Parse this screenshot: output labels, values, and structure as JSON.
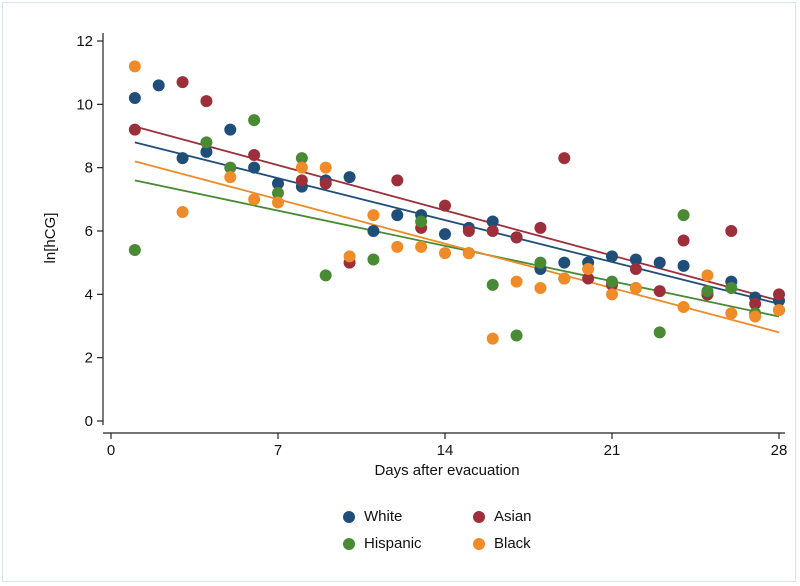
{
  "chart_data": {
    "type": "scatter",
    "xlabel": "Days after evacuation",
    "ylabel": "ln[hCG]",
    "xlim": [
      0,
      28
    ],
    "ylim": [
      0,
      12
    ],
    "xticks": [
      "0",
      "7",
      "14",
      "21",
      "28"
    ],
    "yticks": [
      "0",
      "2",
      "4",
      "6",
      "8",
      "10",
      "12"
    ],
    "legend_position": "bottom",
    "series": [
      {
        "name": "White",
        "color": "#1f4e79",
        "points": [
          [
            1,
            10.2
          ],
          [
            2,
            10.6
          ],
          [
            3,
            8.3
          ],
          [
            4,
            8.5
          ],
          [
            5,
            9.2
          ],
          [
            6,
            8.0
          ],
          [
            7,
            7.5
          ],
          [
            8,
            7.4
          ],
          [
            9,
            7.6
          ],
          [
            10,
            7.7
          ],
          [
            11,
            6.0
          ],
          [
            12,
            6.5
          ],
          [
            13,
            6.5
          ],
          [
            14,
            5.9
          ],
          [
            15,
            6.1
          ],
          [
            16,
            6.3
          ],
          [
            17,
            5.8
          ],
          [
            18,
            4.8
          ],
          [
            19,
            5.0
          ],
          [
            20,
            5.0
          ],
          [
            21,
            5.2
          ],
          [
            22,
            5.1
          ],
          [
            23,
            5.0
          ],
          [
            24,
            4.9
          ],
          [
            25,
            4.0
          ],
          [
            26,
            4.4
          ],
          [
            27,
            3.9
          ],
          [
            28,
            3.8
          ]
        ],
        "fit": [
          8.8,
          3.7
        ]
      },
      {
        "name": "Asian",
        "color": "#9c2f3a",
        "points": [
          [
            1,
            9.2
          ],
          [
            3,
            10.7
          ],
          [
            4,
            10.1
          ],
          [
            6,
            8.4
          ],
          [
            8,
            7.6
          ],
          [
            9,
            7.5
          ],
          [
            10,
            5.0
          ],
          [
            12,
            7.6
          ],
          [
            13,
            6.1
          ],
          [
            14,
            6.8
          ],
          [
            15,
            6.0
          ],
          [
            16,
            6.0
          ],
          [
            17,
            5.8
          ],
          [
            18,
            6.1
          ],
          [
            19,
            8.3
          ],
          [
            20,
            4.5
          ],
          [
            21,
            4.3
          ],
          [
            22,
            4.8
          ],
          [
            23,
            4.1
          ],
          [
            24,
            5.7
          ],
          [
            25,
            4.0
          ],
          [
            26,
            6.0
          ],
          [
            27,
            3.7
          ],
          [
            28,
            4.0
          ]
        ],
        "fit": [
          9.3,
          3.8
        ]
      },
      {
        "name": "Hispanic",
        "color": "#4a8a34",
        "points": [
          [
            1,
            5.4
          ],
          [
            4,
            8.8
          ],
          [
            5,
            8.0
          ],
          [
            6,
            9.5
          ],
          [
            7,
            7.2
          ],
          [
            8,
            8.3
          ],
          [
            9,
            4.6
          ],
          [
            11,
            5.1
          ],
          [
            13,
            6.3
          ],
          [
            15,
            5.3
          ],
          [
            16,
            4.3
          ],
          [
            17,
            2.7
          ],
          [
            18,
            5.0
          ],
          [
            19,
            4.5
          ],
          [
            21,
            4.4
          ],
          [
            22,
            4.2
          ],
          [
            23,
            2.8
          ],
          [
            24,
            6.5
          ],
          [
            25,
            4.1
          ],
          [
            26,
            4.2
          ],
          [
            27,
            3.4
          ],
          [
            28,
            3.5
          ]
        ],
        "fit": [
          7.6,
          3.3
        ]
      },
      {
        "name": "Black",
        "color": "#ef8b28",
        "points": [
          [
            1,
            11.2
          ],
          [
            3,
            6.6
          ],
          [
            5,
            7.7
          ],
          [
            6,
            7.0
          ],
          [
            7,
            6.9
          ],
          [
            8,
            8.0
          ],
          [
            9,
            8.0
          ],
          [
            10,
            5.2
          ],
          [
            11,
            6.5
          ],
          [
            12,
            5.5
          ],
          [
            13,
            5.5
          ],
          [
            14,
            5.3
          ],
          [
            15,
            5.3
          ],
          [
            16,
            2.6
          ],
          [
            17,
            4.4
          ],
          [
            18,
            4.2
          ],
          [
            19,
            4.5
          ],
          [
            20,
            4.8
          ],
          [
            21,
            4.0
          ],
          [
            22,
            4.2
          ],
          [
            24,
            3.6
          ],
          [
            25,
            4.6
          ],
          [
            26,
            3.4
          ],
          [
            27,
            3.3
          ],
          [
            28,
            3.5
          ]
        ],
        "fit": [
          8.2,
          2.8
        ]
      }
    ]
  }
}
